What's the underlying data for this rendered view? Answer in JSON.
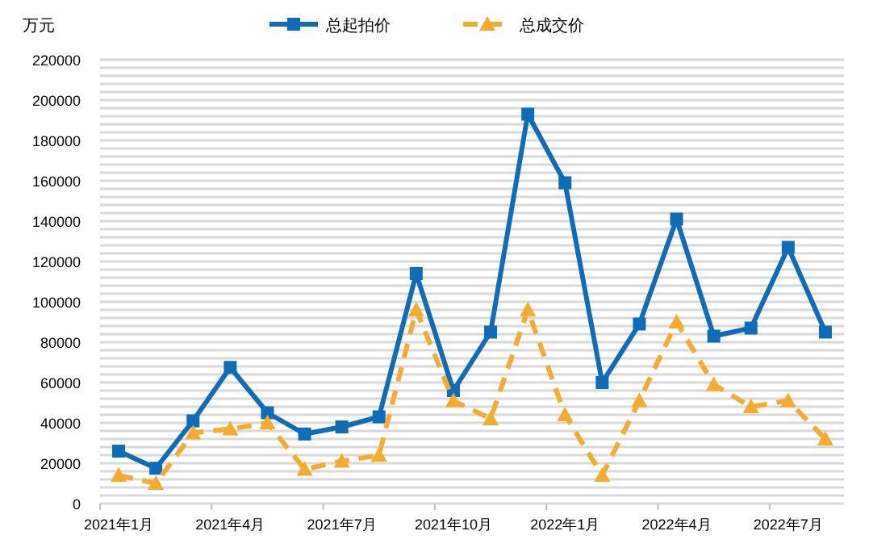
{
  "chart_data": {
    "type": "line",
    "ylabel": "万元",
    "categories": [
      "2021年1月",
      null,
      null,
      "2021年4月",
      null,
      null,
      "2021年7月",
      null,
      null,
      "2021年10月",
      null,
      null,
      "2022年1月",
      null,
      null,
      "2022年4月",
      null,
      null,
      "2022年7月",
      null
    ],
    "series": [
      {
        "name": "总起拍价",
        "color": "#0f6cb6",
        "marker": "square",
        "line_style": "solid",
        "values": [
          26000,
          17500,
          41000,
          67500,
          45000,
          34500,
          38000,
          43000,
          114000,
          56000,
          85000,
          193000,
          159000,
          60000,
          89000,
          141000,
          83000,
          87000,
          127000,
          85000
        ]
      },
      {
        "name": "总成交价",
        "color": "#f5ac2d",
        "marker": "triangle",
        "line_style": "dashed",
        "values": [
          14000,
          10000,
          35000,
          37000,
          40000,
          17000,
          21000,
          24000,
          96000,
          51000,
          42000,
          96000,
          44000,
          14000,
          51000,
          90000,
          59000,
          48000,
          51000,
          32000
        ]
      }
    ],
    "ylim": [
      0,
      220000
    ],
    "yticks": [
      0,
      {
        "value": 4000,
        "label": null
      },
      {
        "value": 8000,
        "label": null
      },
      {
        "value": 12000,
        "label": null
      },
      {
        "value": 16000,
        "label": null
      },
      20000,
      {
        "value": 24000,
        "label": null
      },
      {
        "value": 28000,
        "label": null
      },
      {
        "value": 32000,
        "label": null
      },
      {
        "value": 36000,
        "label": null
      },
      40000,
      {
        "value": 44000,
        "label": null
      },
      {
        "value": 48000,
        "label": null
      },
      {
        "value": 52000,
        "label": null
      },
      {
        "value": 56000,
        "label": null
      },
      60000,
      {
        "value": 64000,
        "label": null
      },
      {
        "value": 68000,
        "label": null
      },
      {
        "value": 72000,
        "label": null
      },
      {
        "value": 76000,
        "label": null
      },
      80000,
      {
        "value": 84000,
        "label": null
      },
      {
        "value": 88000,
        "label": null
      },
      {
        "value": 92000,
        "label": null
      },
      {
        "value": 96000,
        "label": null
      },
      100000,
      {
        "value": 104000,
        "label": null
      },
      {
        "value": 108000,
        "label": null
      },
      {
        "value": 112000,
        "label": null
      },
      {
        "value": 116000,
        "label": null
      },
      120000,
      {
        "value": 124000,
        "label": null
      },
      {
        "value": 128000,
        "label": null
      },
      {
        "value": 132000,
        "label": null
      },
      {
        "value": 136000,
        "label": null
      },
      140000,
      {
        "value": 144000,
        "label": null
      },
      {
        "value": 148000,
        "label": null
      },
      {
        "value": 152000,
        "label": null
      },
      {
        "value": 156000,
        "label": null
      },
      160000,
      {
        "value": 164000,
        "label": null
      },
      {
        "value": 168000,
        "label": null
      },
      {
        "value": 172000,
        "label": null
      },
      {
        "value": 176000,
        "label": null
      },
      180000,
      {
        "value": 184000,
        "label": null
      },
      {
        "value": 188000,
        "label": null
      },
      {
        "value": 192000,
        "label": null
      },
      {
        "value": 196000,
        "label": null
      },
      200000,
      {
        "value": 204000,
        "label": null
      },
      {
        "value": 208000,
        "label": null
      },
      {
        "value": 212000,
        "label": null
      },
      {
        "value": 216000,
        "label": null
      },
      220000
    ],
    "grid": "y",
    "legend": "top"
  }
}
